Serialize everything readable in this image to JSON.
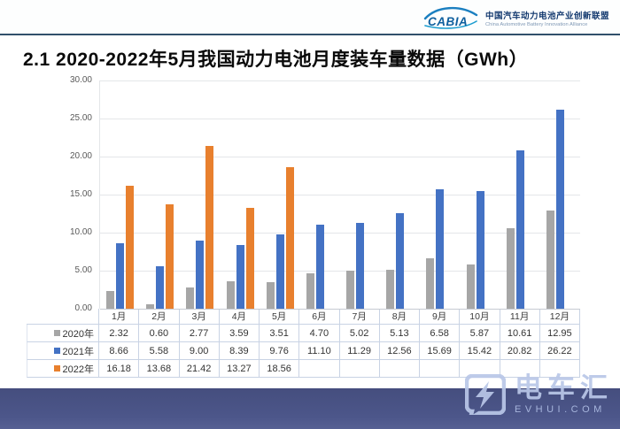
{
  "header": {
    "logo_text": "CABIA",
    "org_name_cn": "中国汽车动力电池产业创新联盟",
    "org_name_en": "China Automotive Battery Innovation Alliance"
  },
  "slide": {
    "title": "2.1 2020-2022年5月我国动力电池月度装车量数据（GWh）"
  },
  "chart_data": {
    "type": "bar",
    "title": "2020-2022年5月我国动力电池月度装车量数据（GWh）",
    "categories": [
      "1月",
      "2月",
      "3月",
      "4月",
      "5月",
      "6月",
      "7月",
      "8月",
      "9月",
      "10月",
      "11月",
      "12月"
    ],
    "series": [
      {
        "name": "2020年",
        "color": "#a6a6a6",
        "values": [
          2.32,
          0.6,
          2.77,
          3.59,
          3.51,
          4.7,
          5.02,
          5.13,
          6.58,
          5.87,
          10.61,
          12.95
        ]
      },
      {
        "name": "2021年",
        "color": "#4472c4",
        "values": [
          8.66,
          5.58,
          9.0,
          8.39,
          9.76,
          11.1,
          11.29,
          12.56,
          15.69,
          15.42,
          20.82,
          26.22
        ]
      },
      {
        "name": "2022年",
        "color": "#e8802e",
        "values": [
          16.18,
          13.68,
          21.42,
          13.27,
          18.56,
          null,
          null,
          null,
          null,
          null,
          null,
          null
        ]
      }
    ],
    "ylim": [
      0,
      30
    ],
    "yticks": [
      "30.00",
      "25.00",
      "20.00",
      "15.00",
      "10.00",
      "5.00",
      "0.00"
    ],
    "grid": true,
    "legend_position": "table-left",
    "xlabel": "",
    "ylabel": ""
  },
  "watermark": {
    "name_cn": "电车汇",
    "site": "EVHUI.COM"
  },
  "colors": {
    "divider": "#31506b",
    "footer": "#4c568a",
    "gridline": "#e4e6e9",
    "table_border": "#c9d3e4",
    "bar_2020": "#a6a6a6",
    "bar_2021": "#4472c4",
    "bar_2022": "#e8802e"
  }
}
